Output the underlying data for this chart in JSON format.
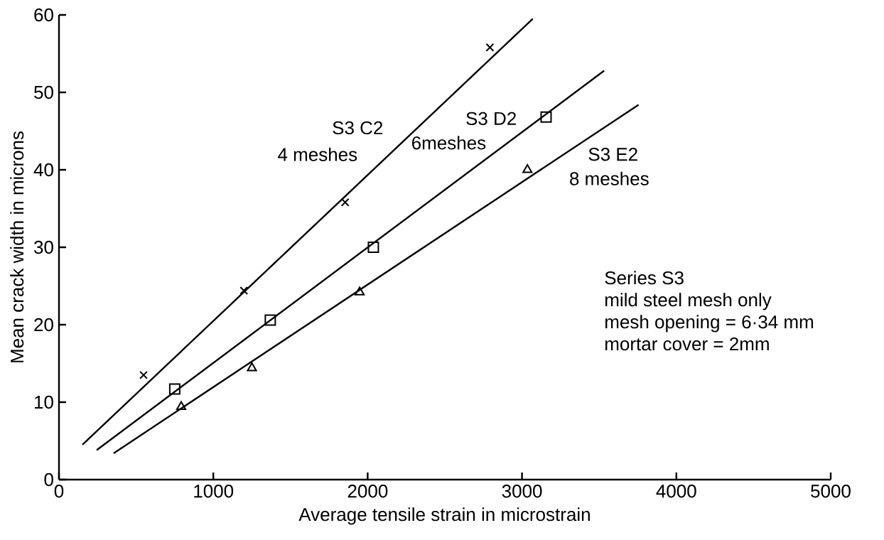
{
  "chart_data": {
    "type": "scatter",
    "xlabel": "Average tensile strain in microstrain",
    "ylabel": "Mean crack width in microns",
    "xlim": [
      0,
      5000
    ],
    "ylim": [
      0,
      60
    ],
    "xticks": [
      0,
      1000,
      2000,
      3000,
      4000,
      5000
    ],
    "yticks": [
      0,
      10,
      20,
      30,
      40,
      50,
      60
    ],
    "grid": false,
    "legend": false,
    "series": [
      {
        "marker": "cross",
        "color": "#000000",
        "x": [
          548,
          1198,
          1854,
          2792
        ],
        "values": [
          13.5,
          24.4,
          35.8,
          55.8
        ]
      },
      {
        "marker": "square",
        "color": "#000000",
        "x": [
          750,
          1369,
          2037,
          3156
        ],
        "values": [
          11.7,
          20.6,
          30.0,
          46.8
        ]
      },
      {
        "marker": "triangle",
        "color": "#000000",
        "x": [
          792,
          1250,
          1948,
          3035
        ],
        "values": [
          9.4,
          14.4,
          24.2,
          40.0
        ]
      },
      {
        "type": "line",
        "marker": "none",
        "color": "#000000",
        "x": [
          152,
          3070
        ],
        "values": [
          4.5,
          59.5
        ]
      },
      {
        "type": "line",
        "marker": "none",
        "color": "#000000",
        "x": [
          244,
          3532
        ],
        "values": [
          3.8,
          52.8
        ]
      },
      {
        "type": "line",
        "marker": "none",
        "color": "#000000",
        "x": [
          354,
          3755
        ],
        "values": [
          3.4,
          48.4
        ]
      }
    ],
    "annotations": [
      "S3 C2",
      "4 meshes",
      "S3 D2",
      "6meshes",
      "S3 E2",
      "8 meshes",
      "Series S3",
      "mild steel mesh only",
      "mesh opening = 6·34 mm",
      "mortar cover = 2mm"
    ]
  }
}
